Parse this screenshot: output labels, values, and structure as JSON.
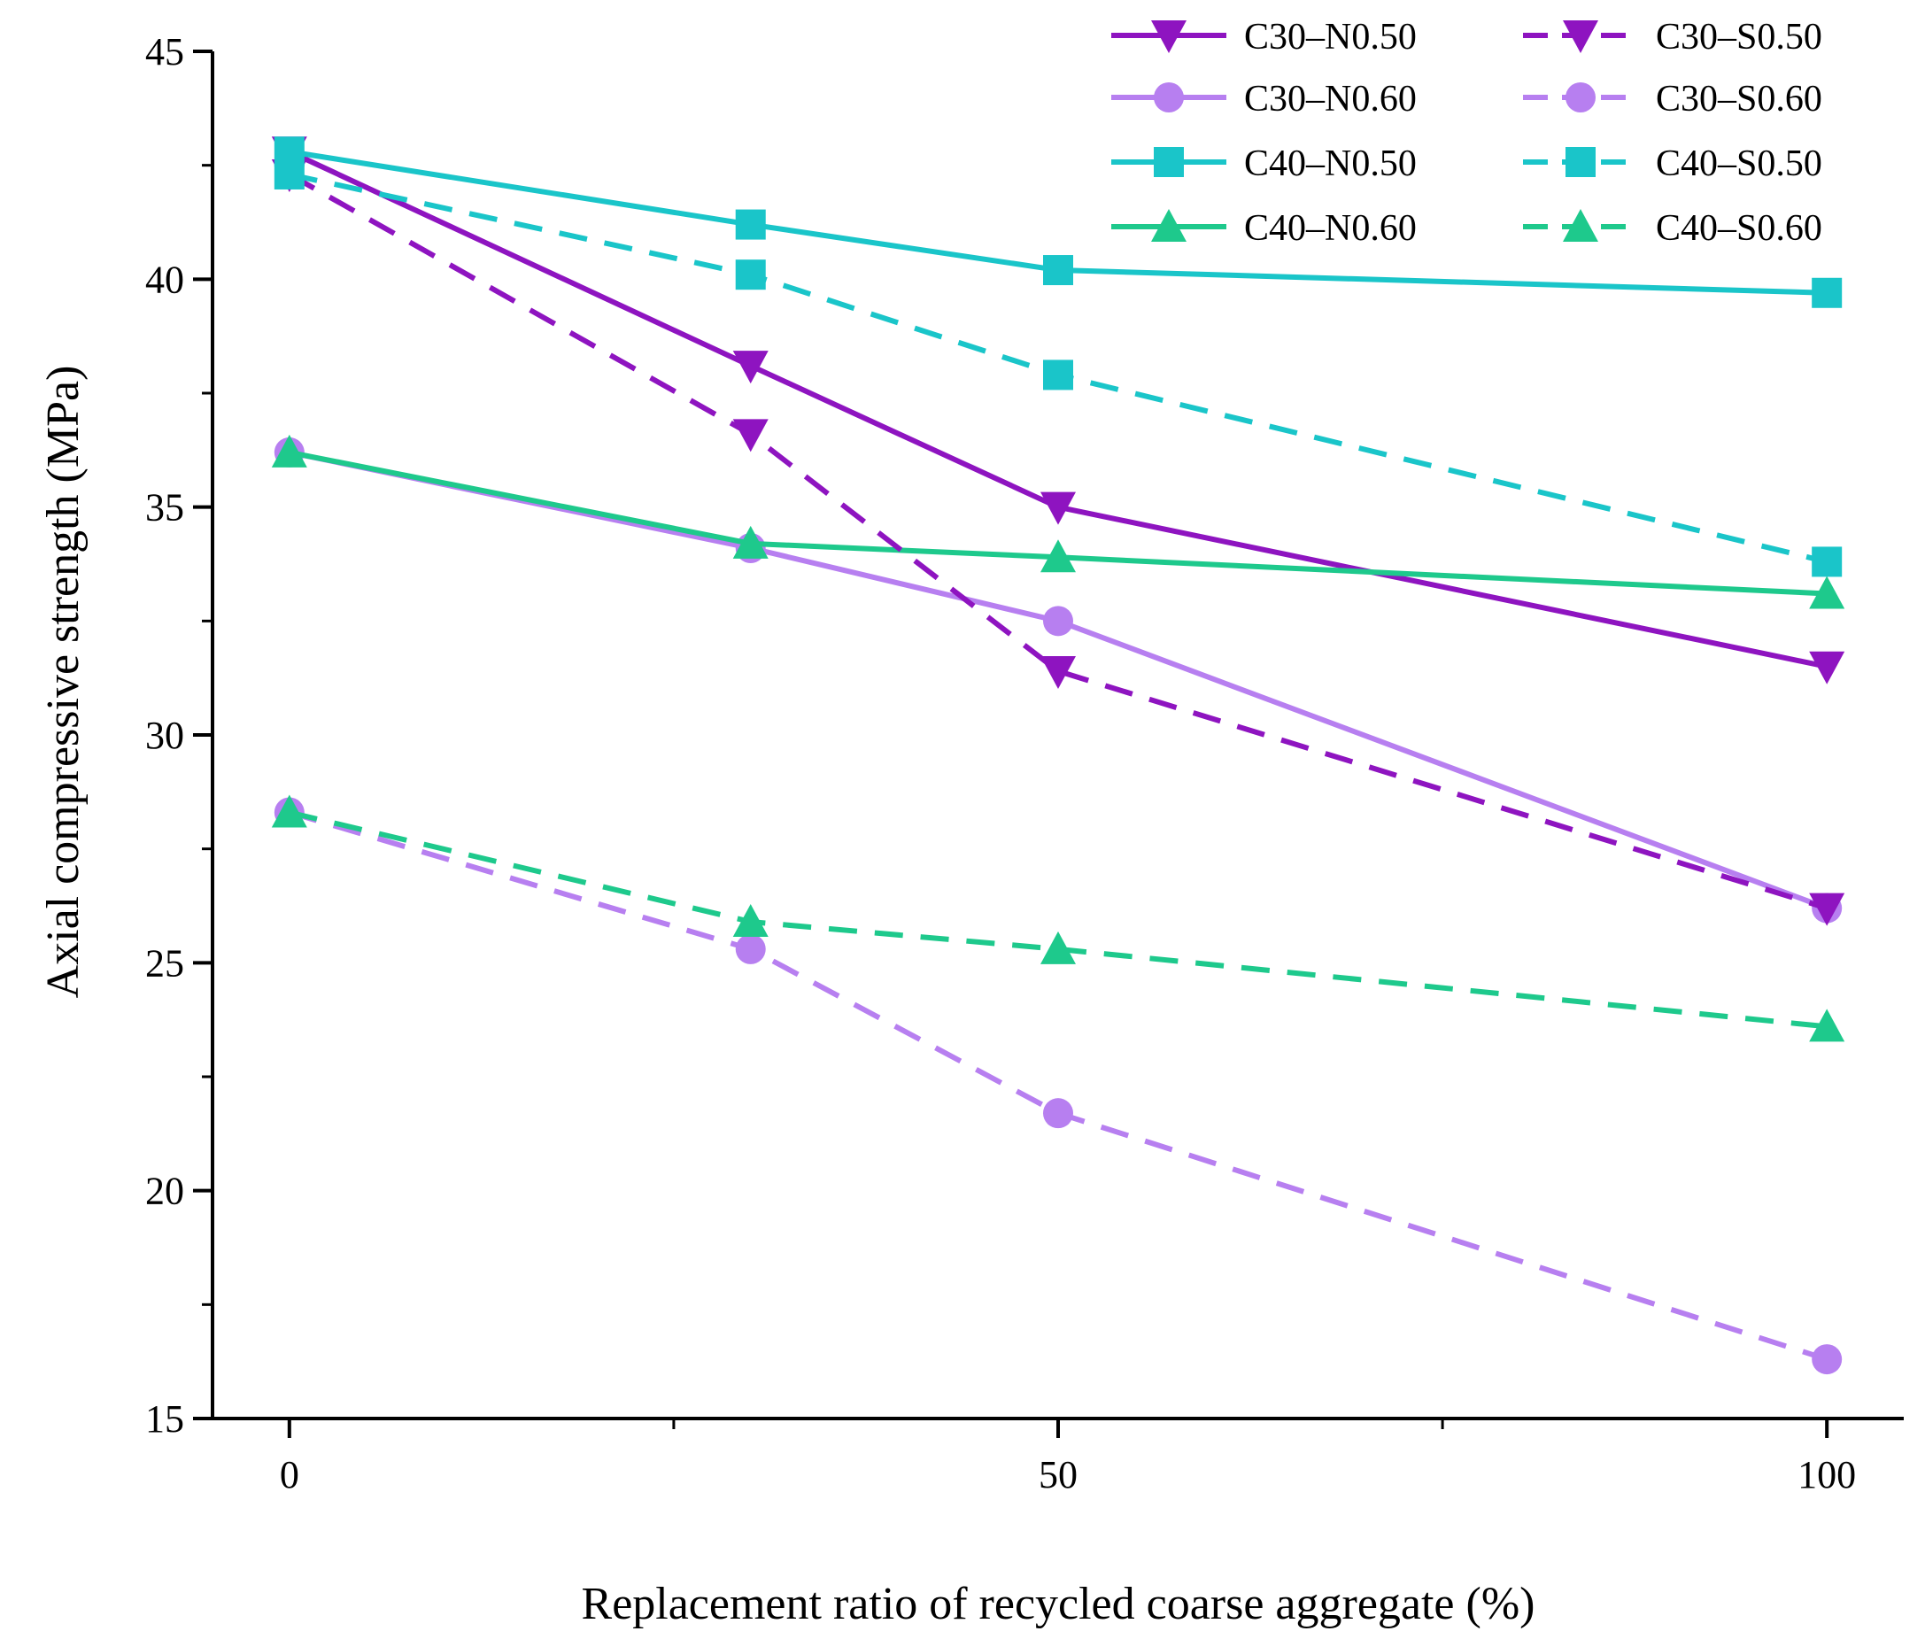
{
  "chart_data": {
    "type": "line",
    "title": "",
    "xlabel": "Replacement ratio of recycled coarse aggregate (%)",
    "ylabel": "Axial compressive strength (MPa)",
    "xlim": [
      -5,
      105
    ],
    "ylim": [
      15,
      45
    ],
    "xticks": [
      0,
      50,
      100
    ],
    "xticks_minor": [
      25,
      75
    ],
    "yticks": [
      15,
      20,
      25,
      30,
      35,
      40,
      45
    ],
    "yticks_minor": [
      17.5,
      22.5,
      27.5,
      32.5,
      37.5,
      42.5
    ],
    "x": [
      0,
      30,
      50,
      100
    ],
    "legend_position": "top-right",
    "series": [
      {
        "name": "C30–N0.50",
        "values": [
          42.8,
          38.1,
          35.0,
          31.5
        ],
        "color": "#8e14c0",
        "dash": "solid",
        "marker": "down-triangle"
      },
      {
        "name": "C30–N0.60",
        "values": [
          36.2,
          34.1,
          32.5,
          26.2
        ],
        "color": "#b77ff0",
        "dash": "solid",
        "marker": "circle"
      },
      {
        "name": "C40–N0.50",
        "values": [
          42.8,
          41.2,
          40.2,
          39.7
        ],
        "color": "#1ac5c9",
        "dash": "solid",
        "marker": "square"
      },
      {
        "name": "C40–N0.60",
        "values": [
          36.2,
          34.2,
          33.9,
          33.1
        ],
        "color": "#1ec98c",
        "dash": "solid",
        "marker": "up-triangle"
      },
      {
        "name": "C30–S0.50",
        "values": [
          42.3,
          36.6,
          31.4,
          26.2
        ],
        "color": "#8e14c0",
        "dash": "dashed",
        "marker": "down-triangle"
      },
      {
        "name": "C30–S0.60",
        "values": [
          28.3,
          25.3,
          21.7,
          16.3
        ],
        "color": "#b77ff0",
        "dash": "dashed",
        "marker": "circle"
      },
      {
        "name": "C40–S0.50",
        "values": [
          42.3,
          40.1,
          37.9,
          33.8
        ],
        "color": "#1ac5c9",
        "dash": "dashed",
        "marker": "square"
      },
      {
        "name": "C40–S0.60",
        "values": [
          28.3,
          25.9,
          25.3,
          23.6
        ],
        "color": "#1ec98c",
        "dash": "dashed",
        "marker": "up-triangle"
      }
    ]
  }
}
